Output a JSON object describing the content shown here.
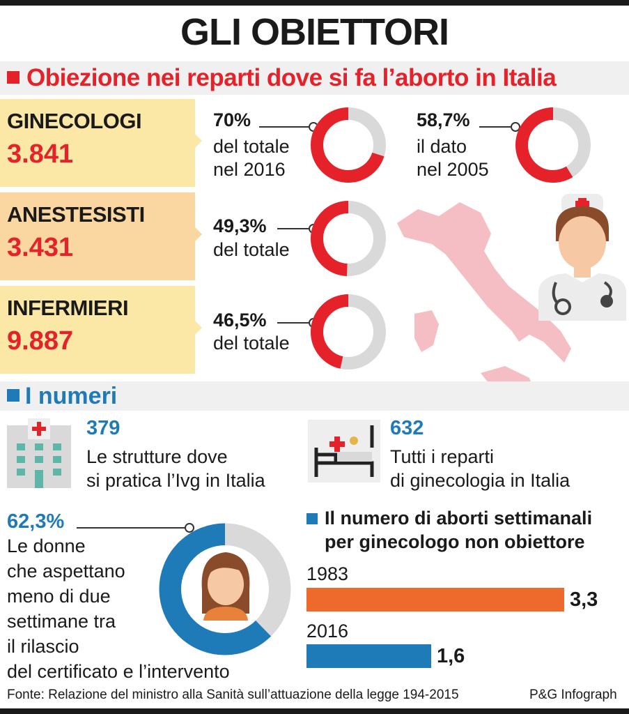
{
  "title": "GLI OBIETTORI",
  "section1": {
    "heading": "Obiezione nei reparti dove si fa l’aborto in Italia"
  },
  "categories": [
    {
      "label": "GINECOLOGI",
      "value": "3.841",
      "pct": "70%",
      "pct_value": 70,
      "sub1": "del totale",
      "sub2": "nel 2016"
    },
    {
      "label": "ANESTESISTI",
      "value": "3.431",
      "pct": "49,3%",
      "pct_value": 49.3,
      "sub1": "del totale",
      "sub2": ""
    },
    {
      "label": "INFERMIERI",
      "value": "9.887",
      "pct": "46,5%",
      "pct_value": 46.5,
      "sub1": "del totale",
      "sub2": ""
    }
  ],
  "ginecologi_2005": {
    "pct": "58,7%",
    "pct_value": 58.7,
    "sub1": "il dato",
    "sub2": "nel 2005"
  },
  "section2": {
    "heading": "I numeri"
  },
  "strutture": {
    "number": "379",
    "line1": "Le strutture dove",
    "line2": "si pratica l’Ivg in Italia"
  },
  "reparti": {
    "number": "632",
    "line1": "Tutti i reparti",
    "line2": "di ginecologia in Italia"
  },
  "donne": {
    "pct": "62,3%",
    "pct_value": 62.3,
    "lines": [
      "Le donne",
      "che aspettano",
      "meno di due",
      "settimane tra",
      "il rilascio",
      "del certificato e l’intervento"
    ]
  },
  "chart_data": {
    "type": "bar",
    "title": "Il numero di aborti settimanali per ginecologo non obiettore",
    "title_line1": "Il numero di aborti settimanali",
    "title_line2": "per ginecologo non obiettore",
    "categories": [
      "1983",
      "2016"
    ],
    "values": [
      3.3,
      1.6
    ],
    "value_labels": [
      "3,3",
      "1,6"
    ],
    "colors": [
      "#ee6a2c",
      "#1f7bb8"
    ]
  },
  "footer": {
    "source": "Fonte: Relazione del ministro alla Sanità sull’attuazione della legge 194-2015",
    "credit": "P&G Infograph"
  },
  "colors": {
    "red": "#e52229",
    "blue": "#1f7bb8",
    "orange": "#ee6a2c",
    "grey": "#d9d9d9",
    "card": "#fbe8a6",
    "card_alt": "#fad7a0"
  },
  "icons": [
    "italy-map-icon",
    "doctor-icon",
    "hospital-building-icon",
    "hospital-bed-icon",
    "woman-avatar-icon"
  ]
}
